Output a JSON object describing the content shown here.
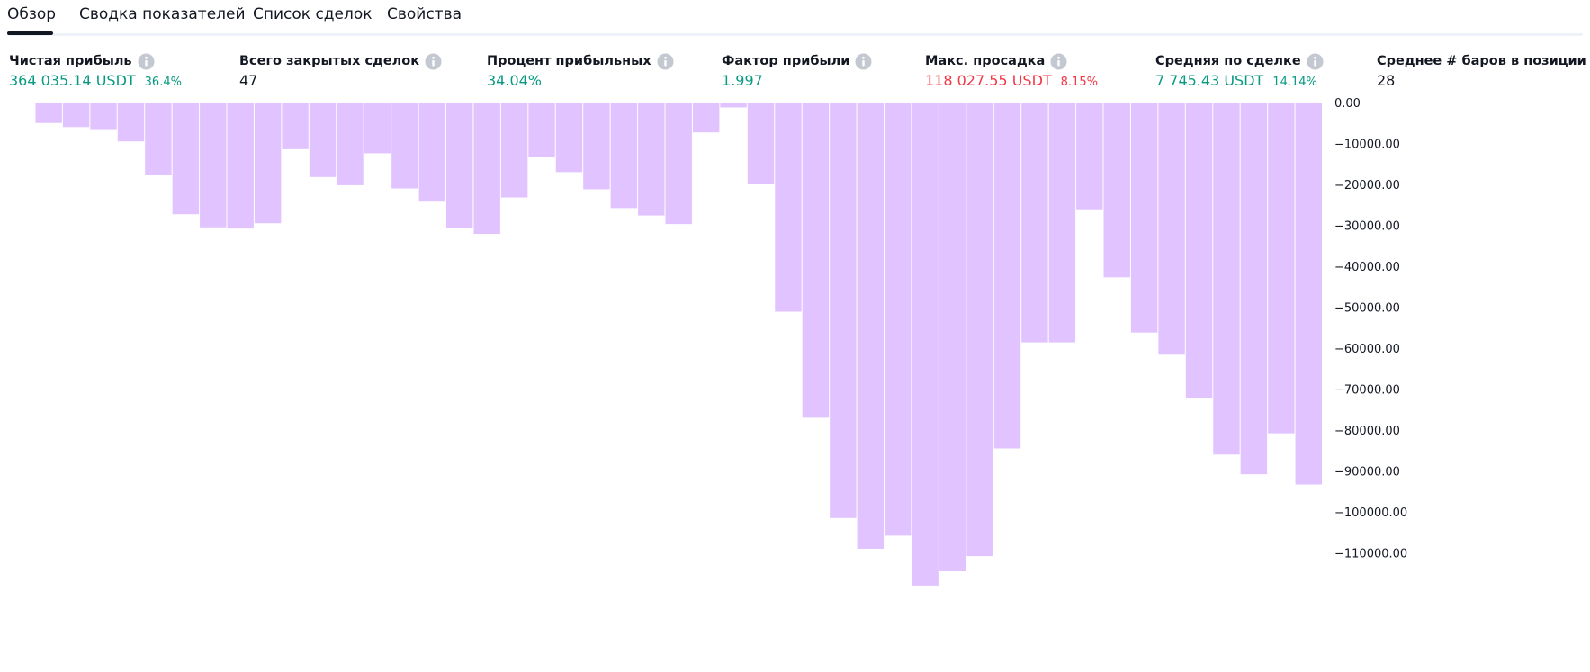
{
  "tabs": [
    {
      "label": "Обзор",
      "active": true
    },
    {
      "label": "Сводка показателей"
    },
    {
      "label": "Список сделок"
    },
    {
      "label": "Свойства"
    }
  ],
  "metrics": [
    {
      "label": "Чистая прибыль",
      "value": "364 035.14 USDT",
      "sub": "36.4%",
      "color": "#089981"
    },
    {
      "label": "Всего закрытых сделок",
      "value": "47",
      "sub": "",
      "color": "#131722"
    },
    {
      "label": "Процент прибыльных",
      "value": "34.04%",
      "sub": "",
      "color": "#089981"
    },
    {
      "label": "Фактор прибыли",
      "value": "1.997",
      "sub": "",
      "color": "#089981"
    },
    {
      "label": "Макс. просадка",
      "value": "118 027.55 USDT",
      "sub": "8.15%",
      "color": "#f23645"
    },
    {
      "label": "Средняя по сделке",
      "value": "7 745.43 USDT",
      "sub": "14.14%",
      "color": "#089981"
    },
    {
      "label": "Среднее # баров в позиции",
      "value": "28",
      "sub": "",
      "color": "#131722"
    }
  ],
  "colors": {
    "bar": "#e1c4ff",
    "positive": "#089981",
    "negative": "#f23645",
    "text": "#131722",
    "info_icon": "#c4c8d1"
  },
  "info_icon_name": "info-icon",
  "chart_data": {
    "type": "bar",
    "title": "",
    "xlabel": "",
    "ylabel": "",
    "ylim": [
      -120000,
      0
    ],
    "y_ticks": [
      0,
      -10000,
      -20000,
      -30000,
      -40000,
      -50000,
      -60000,
      -70000,
      -80000,
      -90000,
      -100000,
      -110000
    ],
    "y_tick_labels": [
      "0.00",
      "−10000.00",
      "−20000.00",
      "−30000.00",
      "−40000.00",
      "−50000.00",
      "−60000.00",
      "−70000.00",
      "−80000.00",
      "−90000.00",
      "−100000.00",
      "−110000.00"
    ],
    "values": [
      -100,
      -5000,
      -6000,
      -6500,
      -9500,
      -17800,
      -27300,
      -30500,
      -30800,
      -29500,
      -11400,
      -18200,
      -20200,
      -12400,
      -21000,
      -24000,
      -30700,
      -32100,
      -23200,
      -13200,
      -17000,
      -21200,
      -25800,
      -27600,
      -29700,
      -7300,
      -1200,
      -20000,
      -51100,
      -77000,
      -101500,
      -109000,
      -105800,
      -118000,
      -114500,
      -110800,
      -84500,
      -58600,
      -58600,
      -26100,
      -42700,
      -56200,
      -61600,
      -72100,
      -86000,
      -90800,
      -80800,
      -93300
    ]
  }
}
